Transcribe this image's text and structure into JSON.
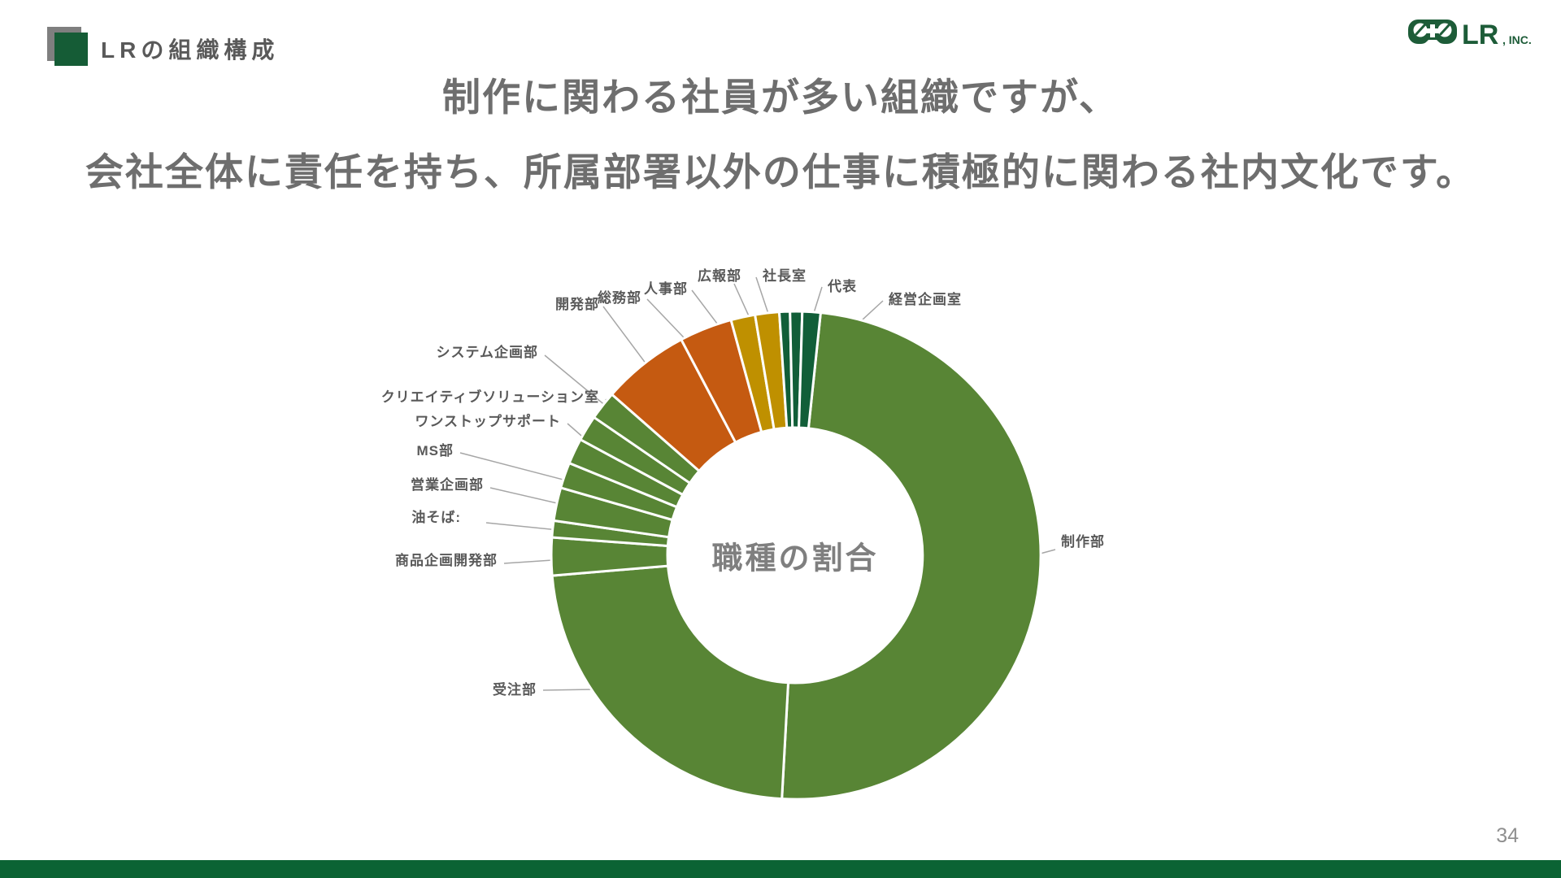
{
  "slide": {
    "header": {
      "title": "LRの組織構成"
    },
    "logo": {
      "company": "LR",
      "suffix": ", INC.",
      "icon": "game-controller-icon",
      "color": "#1d5c38"
    },
    "headline": {
      "line1": "制作に関わる社員が多い組織ですが、",
      "line2": "会社全体に責任を持ち、所属部署以外の仕事に積極的に関わる社内文化です。"
    },
    "page_number": "34",
    "colors": {
      "accent_dark_green": "#0b6334",
      "header_square_green": "#155c36",
      "header_square_gray": "#7f7f7f",
      "text_gray": "#595959",
      "headline_gray": "#6e6e6e",
      "leader_line_gray": "#a6a6a6"
    }
  },
  "chart_data": {
    "type": "pie",
    "subtype": "donut",
    "center_label": "職種の割合",
    "unit": "%",
    "start_angle_deg": 6,
    "legend_position": "outside-labels",
    "slices": [
      {
        "label": "制作部",
        "value": 49.2,
        "color": "#588535"
      },
      {
        "label": "受注部",
        "value": 22.8,
        "color": "#588535"
      },
      {
        "label": "商品企画開発部",
        "value": 2.5,
        "color": "#588535"
      },
      {
        "label": "油そば:",
        "value": 1.1,
        "color": "#588535"
      },
      {
        "label": "営業企画部",
        "value": 2.2,
        "color": "#588535"
      },
      {
        "label": "MS部",
        "value": 1.7,
        "color": "#588535"
      },
      {
        "label": "ワンストップサポート",
        "value": 1.7,
        "color": "#588535"
      },
      {
        "label": "クリエイティブソリューション室",
        "value": 1.7,
        "color": "#588535"
      },
      {
        "label": "システム企画部",
        "value": 1.9,
        "color": "#588535"
      },
      {
        "label": "開発部",
        "value": 5.8,
        "color": "#c55a11"
      },
      {
        "label": "総務部",
        "value": 3.5,
        "color": "#c55a11"
      },
      {
        "label": "人事部",
        "value": 1.6,
        "color": "#bf9000"
      },
      {
        "label": "広報部",
        "value": 1.6,
        "color": "#bf9000"
      },
      {
        "label": "社長室",
        "value": 0.7,
        "color": "#115e38"
      },
      {
        "label": "代表",
        "value": 0.8,
        "color": "#115e38"
      },
      {
        "label": "経営企画室",
        "value": 1.2,
        "color": "#115e38"
      }
    ]
  }
}
